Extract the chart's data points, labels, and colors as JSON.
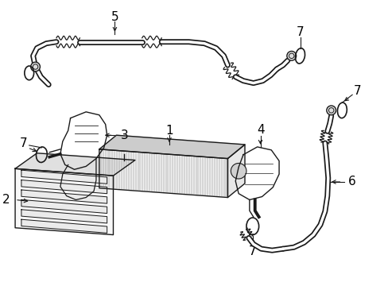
{
  "background_color": "#ffffff",
  "line_color": "#1a1a1a",
  "label_color": "#000000",
  "figsize": [
    4.89,
    3.6
  ],
  "dpi": 100,
  "label_fontsize": 11
}
